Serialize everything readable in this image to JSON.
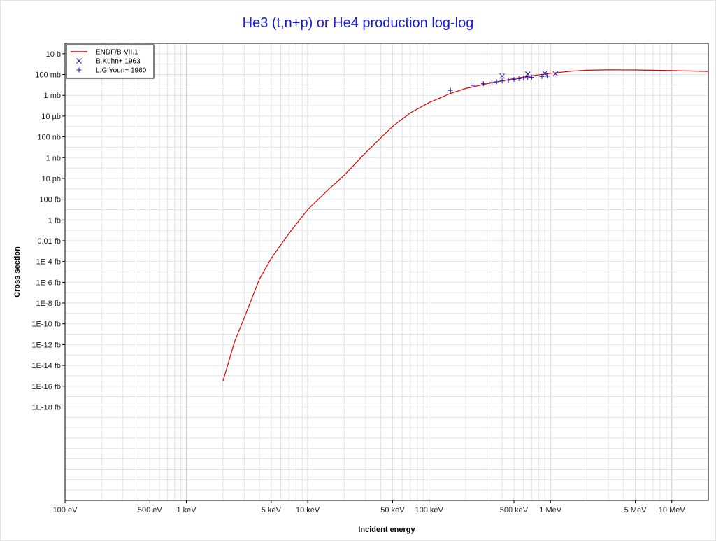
{
  "chart_data": {
    "type": "line",
    "title": "He3 (t,n+p) or He4 production log-log",
    "xlabel": "Incident energy",
    "ylabel": "Cross section",
    "x_scale": "log",
    "y_scale": "log",
    "xlim_eV": [
      100,
      20000000
    ],
    "ylim_barn": [
      1e-42,
      100
    ],
    "grid": true,
    "legend_position": "top-left",
    "x_ticks": [
      {
        "value": 100,
        "label": "100 eV"
      },
      {
        "value": 500,
        "label": "500 eV"
      },
      {
        "value": 1000,
        "label": "1 keV"
      },
      {
        "value": 5000,
        "label": "5 keV"
      },
      {
        "value": 10000,
        "label": "10 keV"
      },
      {
        "value": 50000,
        "label": "50 keV"
      },
      {
        "value": 100000,
        "label": "100 keV"
      },
      {
        "value": 500000,
        "label": "500 keV"
      },
      {
        "value": 1000000,
        "label": "1 MeV"
      },
      {
        "value": 5000000,
        "label": "5 MeV"
      },
      {
        "value": 10000000,
        "label": "10 MeV"
      }
    ],
    "y_ticks": [
      {
        "value": 10,
        "label": "10 b"
      },
      {
        "value": 0.1,
        "label": "100 mb"
      },
      {
        "value": 0.001,
        "label": "1 mb"
      },
      {
        "value": 1e-05,
        "label": "10 µb"
      },
      {
        "value": 1e-07,
        "label": "100 nb"
      },
      {
        "value": 1e-09,
        "label": "1 nb"
      },
      {
        "value": 1e-11,
        "label": "10 pb"
      },
      {
        "value": 1e-13,
        "label": "100 fb"
      },
      {
        "value": 1e-15,
        "label": "1 fb"
      },
      {
        "value": 1e-17,
        "label": "0.01 fb"
      },
      {
        "value": 1e-19,
        "label": "1E-4 fb"
      },
      {
        "value": 1e-21,
        "label": "1E-6 fb"
      },
      {
        "value": 1e-23,
        "label": "1E-8 fb"
      },
      {
        "value": 1e-25,
        "label": "1E-10 fb"
      },
      {
        "value": 1e-27,
        "label": "1E-12 fb"
      },
      {
        "value": 1e-29,
        "label": "1E-14 fb"
      },
      {
        "value": 1e-31,
        "label": "1E-16 fb"
      },
      {
        "value": 1e-33,
        "label": "1E-18 fb"
      }
    ],
    "series": [
      {
        "name": "ENDF/B-VII.1",
        "kind": "line",
        "color": "#e00000",
        "x_eV": [
          2000,
          2500,
          3000,
          4000,
          5000,
          7000,
          10000,
          15000,
          20000,
          30000,
          50000,
          70000,
          100000,
          150000,
          200000,
          300000,
          500000,
          700000,
          1000000,
          1500000,
          2000000,
          3000000,
          5000000,
          10000000,
          20000000
        ],
        "y_barn": [
          3e-31,
          2e-27,
          4e-25,
          2e-21,
          2e-19,
          5e-17,
          1e-14,
          1e-12,
          2e-11,
          3e-09,
          1e-06,
          2e-05,
          0.0002,
          0.0015,
          0.0045,
          0.013,
          0.04,
          0.075,
          0.13,
          0.21,
          0.26,
          0.28,
          0.275,
          0.24,
          0.2
        ]
      },
      {
        "name": "B.Kuhn+ 1963",
        "kind": "scatter",
        "marker": "x",
        "color": "#1a1a9c",
        "x_eV": [
          400000,
          650000,
          900000,
          1100000
        ],
        "y_barn": [
          0.07,
          0.11,
          0.13,
          0.12
        ]
      },
      {
        "name": "L.G.Youn+ 1960",
        "kind": "scatter",
        "marker": "+",
        "color": "#1a1ad0",
        "x_eV": [
          150000,
          230000,
          280000,
          330000,
          360000,
          400000,
          450000,
          500000,
          550000,
          600000,
          650000,
          700000,
          850000,
          950000
        ],
        "y_barn": [
          0.003,
          0.009,
          0.013,
          0.017,
          0.02,
          0.024,
          0.028,
          0.034,
          0.04,
          0.045,
          0.05,
          0.055,
          0.065,
          0.07
        ]
      }
    ]
  }
}
